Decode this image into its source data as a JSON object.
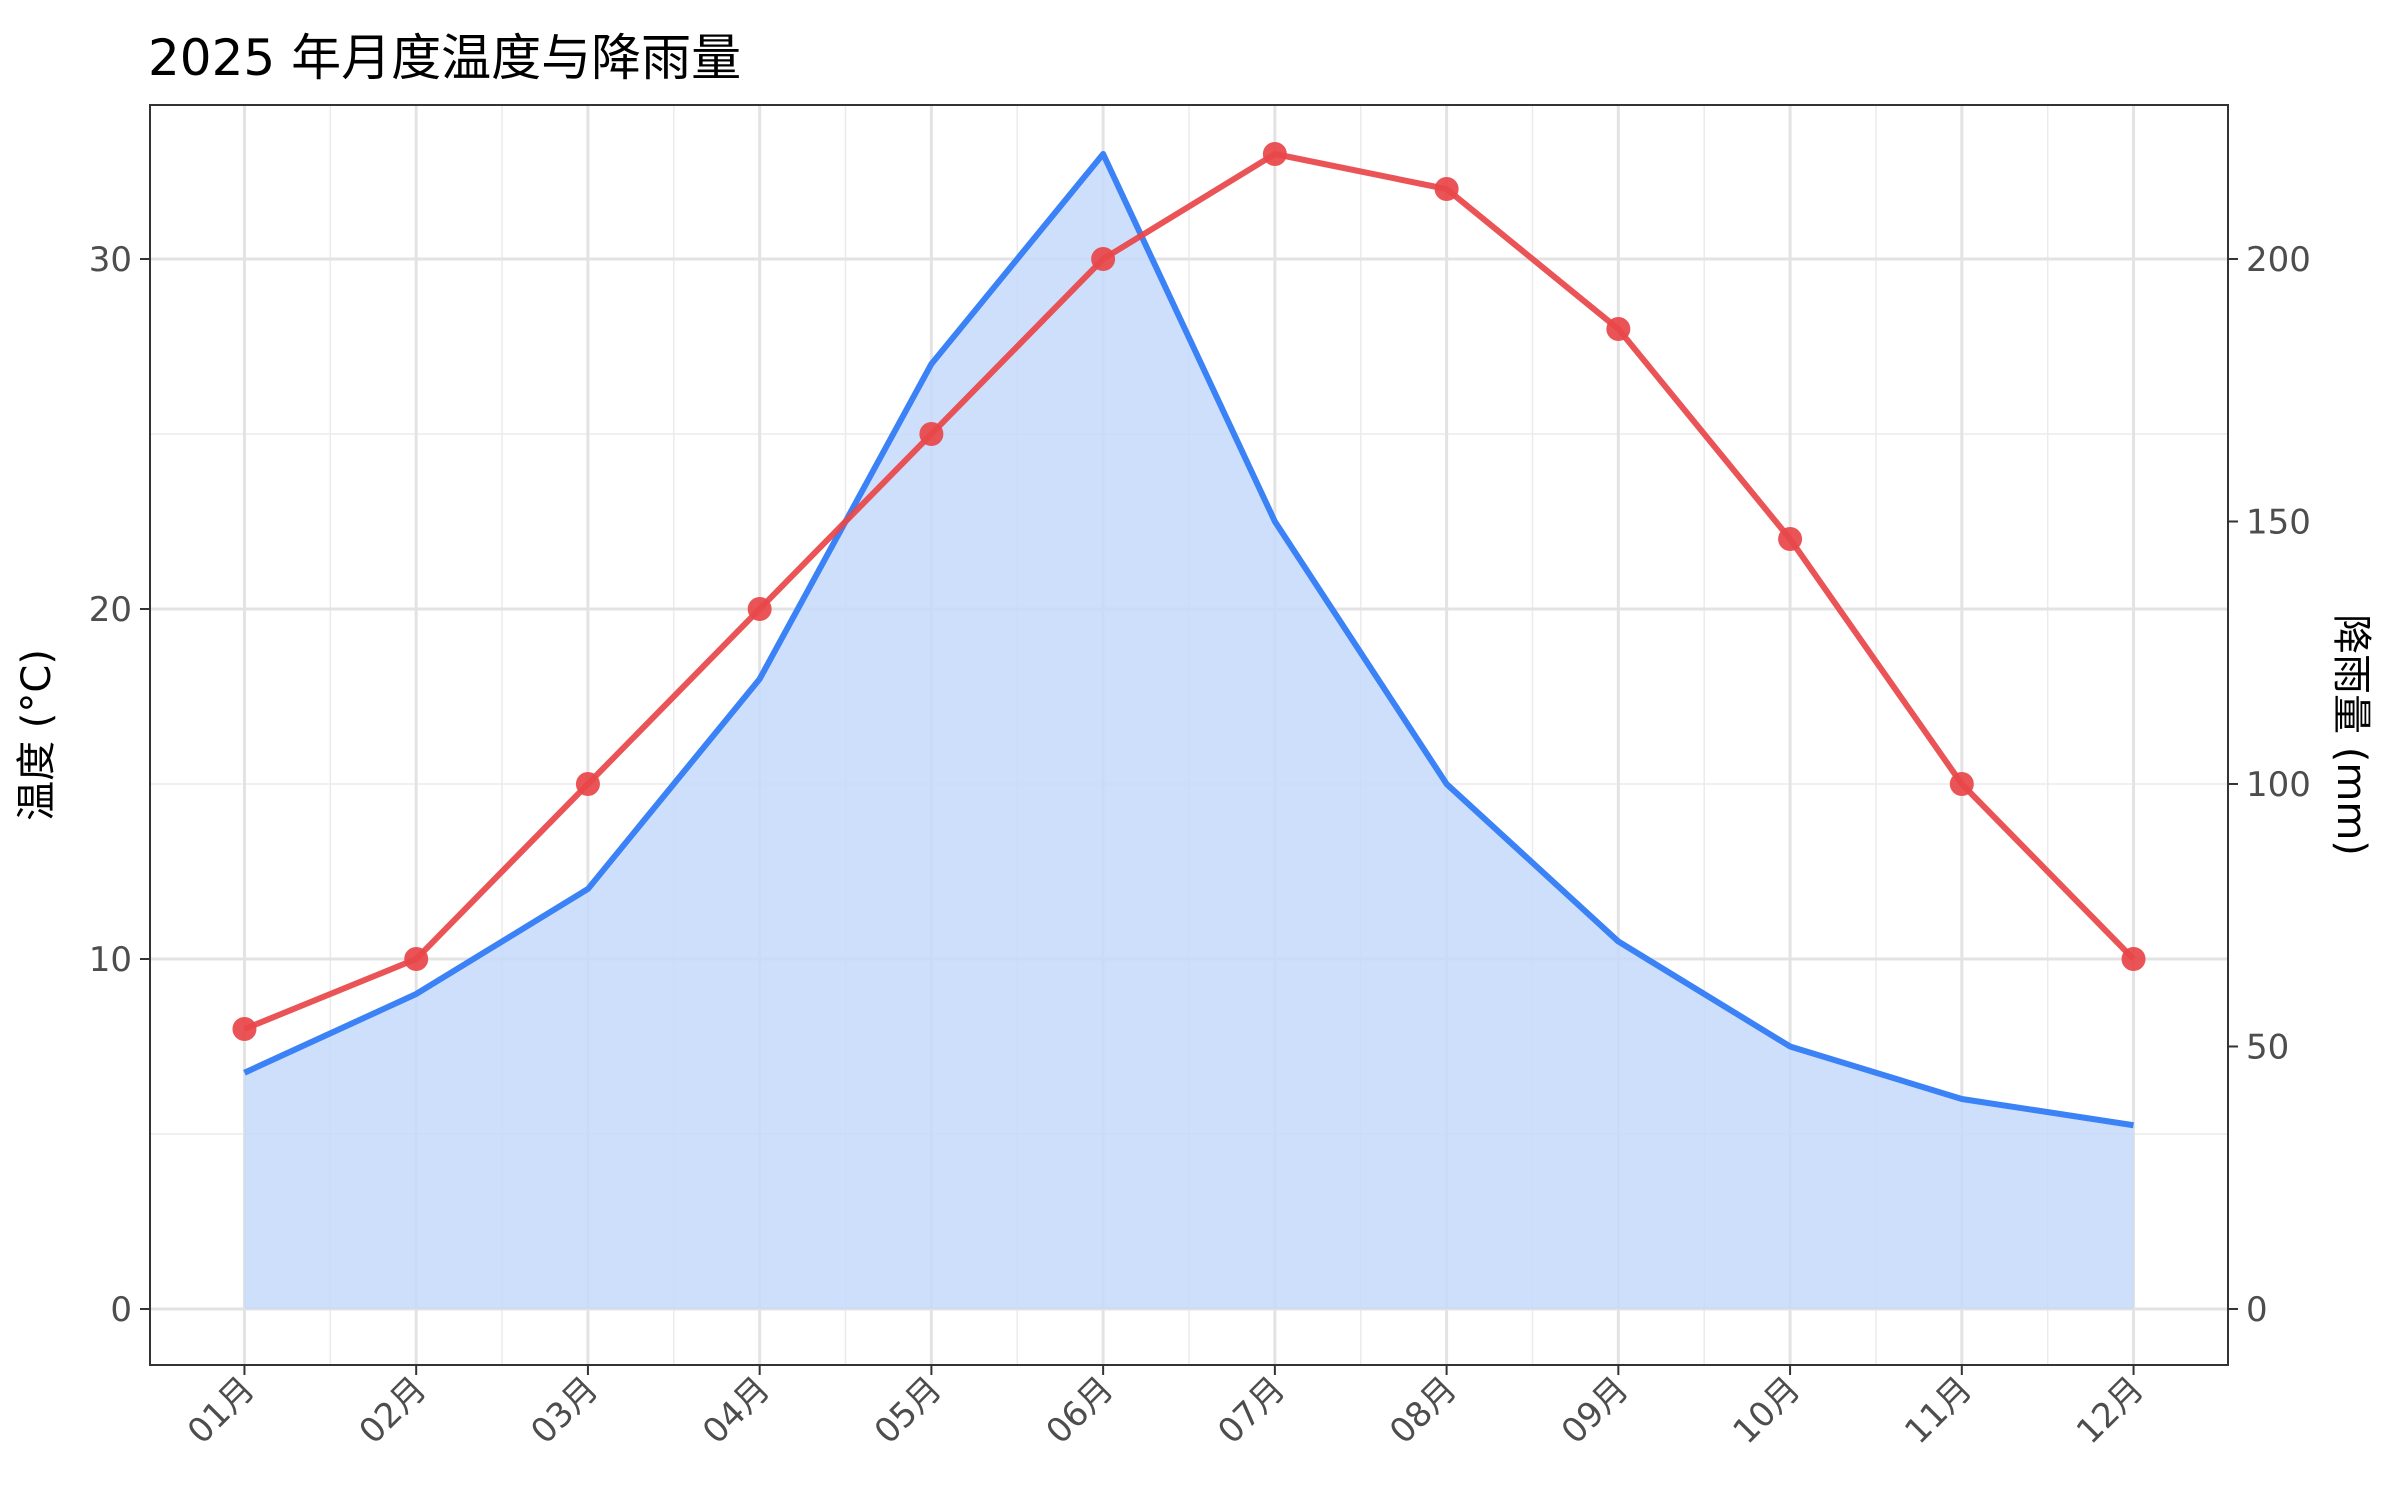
{
  "chart_data": {
    "type": "line",
    "title": "2025 年月度温度与降雨量",
    "categories": [
      "01月",
      "02月",
      "03月",
      "04月",
      "05月",
      "06月",
      "07月",
      "08月",
      "09月",
      "10月",
      "11月",
      "12月"
    ],
    "series": [
      {
        "name": "",
        "kind": "area",
        "axis": "right",
        "color": "#3b82f6",
        "fill": "#c6d9fb",
        "values": [
          45,
          60,
          80,
          120,
          180,
          220,
          150,
          100,
          70,
          50,
          40,
          35
        ]
      },
      {
        "name": "",
        "kind": "line-points",
        "axis": "left",
        "color": "#e8474a",
        "values": [
          8,
          10,
          15,
          20,
          25,
          30,
          33,
          32,
          28,
          22,
          15,
          10
        ]
      }
    ],
    "ylabel": "温度 (°C)",
    "y2label": "降雨量 (mm)",
    "xlabel": "",
    "ylim": [
      -1.6,
      34.4
    ],
    "y2lim": [
      -10.67,
      229.33
    ],
    "yticks": [
      0,
      10,
      20,
      30
    ],
    "y2ticks": [
      0,
      50,
      100,
      150,
      200
    ],
    "grid": true,
    "legend": "none"
  }
}
